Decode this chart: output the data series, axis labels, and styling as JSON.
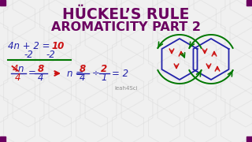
{
  "bg_color": "#f0f0f0",
  "title_line1": "HÜCKEL’S RULE",
  "title_line2": "AROMATICITY PART 2",
  "title_color": "#6b0060",
  "math_color_blue": "#2222aa",
  "math_color_red": "#cc1111",
  "math_color_green": "#007700",
  "hex_color": "#d8d8d8",
  "corner_color": "#6b0060",
  "watermark": "leah4Sci"
}
